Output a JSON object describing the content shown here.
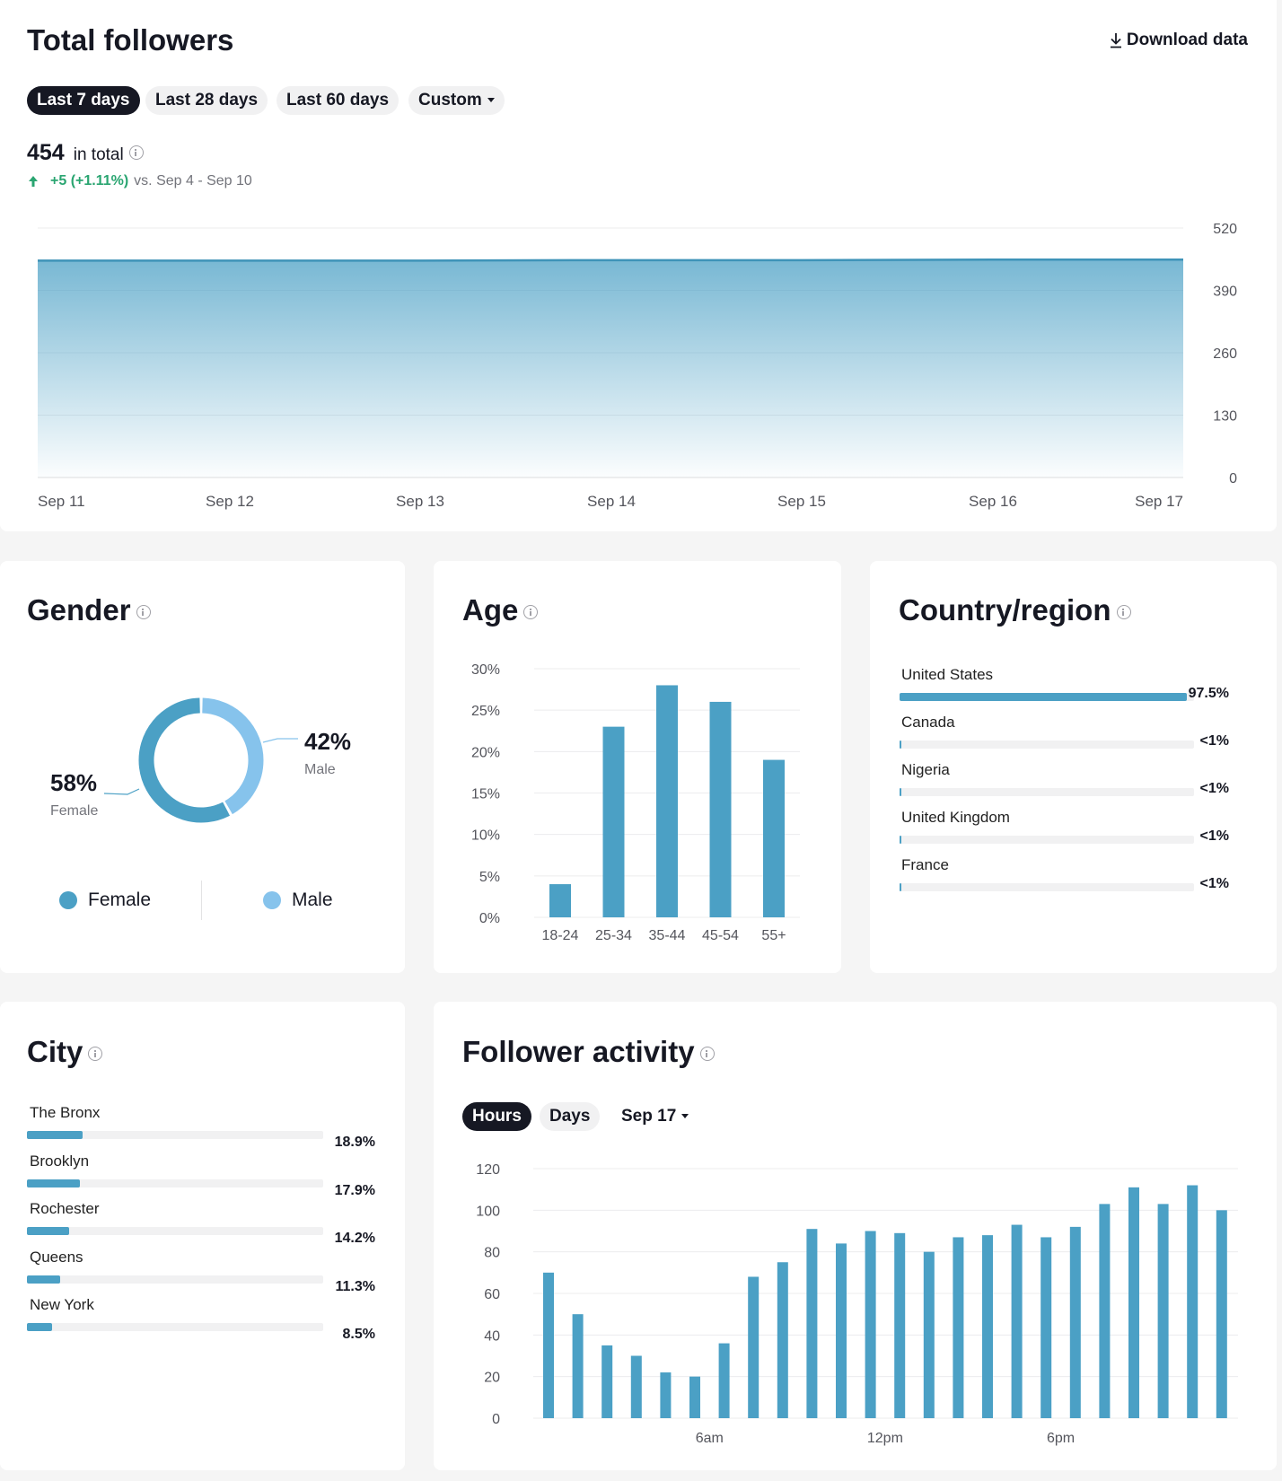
{
  "total": {
    "title": "Total followers",
    "download_label": "Download data",
    "ranges": [
      "Last 7 days",
      "Last 28 days",
      "Last 60 days",
      "Custom"
    ],
    "active_range": "Last 7 days",
    "count": "454",
    "count_suffix": "in total",
    "change": "+5 (+1.11%)",
    "change_compare": "vs. Sep 4 - Sep 10",
    "accent_color": "#4ba0c5",
    "up_color": "#2aa571"
  },
  "gender": {
    "title": "Gender",
    "female_pct": "58%",
    "female_label": "Female",
    "male_pct": "42%",
    "male_label": "Male",
    "legend_female": "Female",
    "legend_male": "Male",
    "female_color": "#4ba0c5",
    "male_color": "#86c3ec"
  },
  "age": {
    "title": "Age"
  },
  "country": {
    "title": "Country/region",
    "rows": [
      {
        "label": "United States",
        "value": "97.5%",
        "fraction": 0.975
      },
      {
        "label": "Canada",
        "value": "<1%",
        "fraction": 0.004
      },
      {
        "label": "Nigeria",
        "value": "<1%",
        "fraction": 0.004
      },
      {
        "label": "United Kingdom",
        "value": "<1%",
        "fraction": 0.004
      },
      {
        "label": "France",
        "value": "<1%",
        "fraction": 0.004
      }
    ]
  },
  "city": {
    "title": "City",
    "rows": [
      {
        "label": "The Bronx",
        "value": "18.9%",
        "fraction": 0.189
      },
      {
        "label": "Brooklyn",
        "value": "17.9%",
        "fraction": 0.179
      },
      {
        "label": "Rochester",
        "value": "14.2%",
        "fraction": 0.142
      },
      {
        "label": "Queens",
        "value": "11.3%",
        "fraction": 0.113
      },
      {
        "label": "New York",
        "value": "8.5%",
        "fraction": 0.085
      }
    ]
  },
  "activity": {
    "title": "Follower activity",
    "tabs": [
      "Hours",
      "Days"
    ],
    "active_tab": "Hours",
    "date_select": "Sep 17"
  },
  "chart_data": [
    {
      "type": "area",
      "x": [
        "Sep 11",
        "Sep 12",
        "Sep 13",
        "Sep 14",
        "Sep 15",
        "Sep 16",
        "Sep 17"
      ],
      "values": [
        452,
        452,
        452,
        453,
        453,
        454,
        454
      ],
      "y_ticks": [
        0,
        130,
        260,
        390,
        520
      ],
      "ylim": [
        0,
        520
      ],
      "grid": true,
      "y_axis_side": "right"
    },
    {
      "type": "pie",
      "labels": [
        "Female",
        "Male"
      ],
      "values": [
        58,
        42
      ]
    },
    {
      "type": "bar",
      "categories": [
        "18-24",
        "25-34",
        "35-44",
        "45-54",
        "55+"
      ],
      "values": [
        4,
        23,
        28,
        26,
        19
      ],
      "y_ticks": [
        "0%",
        "5%",
        "10%",
        "15%",
        "20%",
        "25%",
        "30%"
      ],
      "ylim": [
        0,
        30
      ],
      "grid": true
    },
    {
      "type": "bar",
      "x_labels": [
        {
          "index": 6,
          "label": "6am"
        },
        {
          "index": 12,
          "label": "12pm"
        },
        {
          "index": 18,
          "label": "6pm"
        }
      ],
      "values": [
        70,
        50,
        35,
        30,
        22,
        20,
        36,
        68,
        75,
        91,
        84,
        90,
        89,
        80,
        87,
        88,
        93,
        87,
        92,
        103,
        111,
        103,
        112,
        100
      ],
      "y_ticks": [
        0,
        20,
        40,
        60,
        80,
        100,
        120
      ],
      "ylim": [
        0,
        120
      ],
      "grid": true
    }
  ]
}
